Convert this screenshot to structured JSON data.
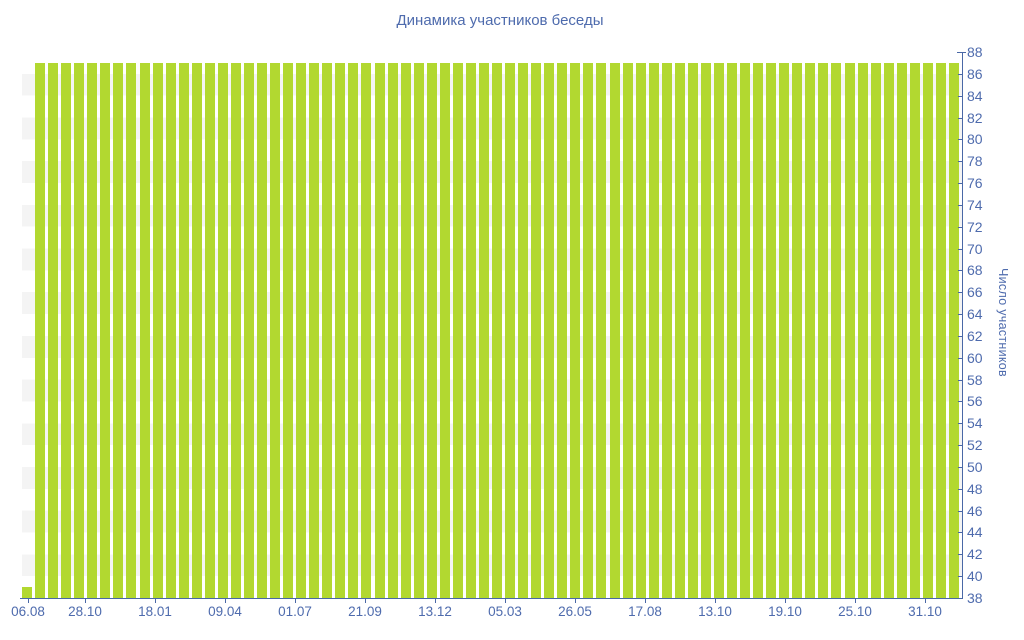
{
  "chart_data": {
    "type": "bar",
    "title": "Динамика участников беседы",
    "ylabel": "Число участников",
    "xlabel": "",
    "ylim": [
      38,
      88
    ],
    "grid": "alternating-horizontal-bands",
    "legend": "none",
    "bar_color": "#b2d830",
    "text_color": "#4e6bad",
    "axis_color": "#4a68a6",
    "band_color": "#f4f4f4",
    "x_tick_labels": [
      "06.08",
      "28.10",
      "18.01",
      "09.04",
      "01.07",
      "21.09",
      "13.12",
      "05.03",
      "26.05",
      "17.08",
      "13.10",
      "19.10",
      "25.10",
      "31.10"
    ],
    "y_ticks": [
      38,
      40,
      42,
      44,
      46,
      48,
      50,
      52,
      54,
      56,
      58,
      60,
      62,
      64,
      66,
      68,
      70,
      72,
      74,
      76,
      78,
      80,
      82,
      84,
      86,
      88
    ],
    "values": [
      39,
      87,
      87,
      87,
      87,
      87,
      87,
      87,
      87,
      87,
      87,
      87,
      87,
      87,
      87,
      87,
      87,
      87,
      87,
      87,
      87,
      87,
      87,
      87,
      87,
      87,
      87,
      87,
      87,
      87,
      87,
      87,
      87,
      87,
      87,
      87,
      87,
      87,
      87,
      87,
      87,
      87,
      87,
      87,
      87,
      87,
      87,
      87,
      87,
      87,
      87,
      87,
      87,
      87,
      87,
      87,
      87,
      87,
      87,
      87,
      87,
      87,
      87,
      87,
      87,
      87,
      87,
      87,
      87,
      87,
      87,
      87
    ]
  }
}
